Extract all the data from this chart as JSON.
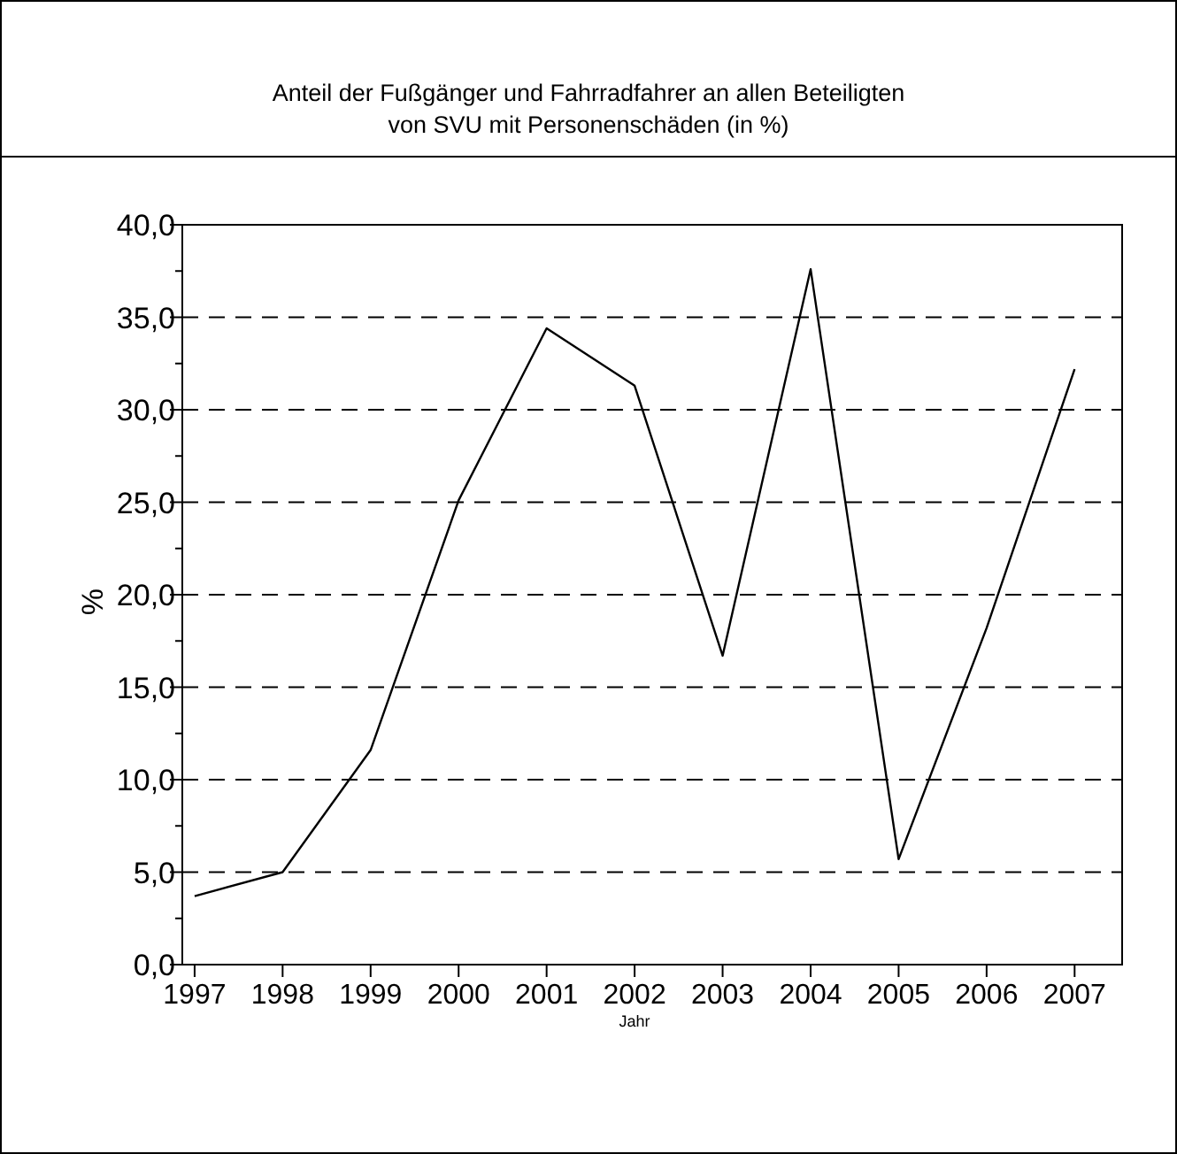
{
  "chart_data": {
    "type": "line",
    "title": "Anteil der Fußgänger und Fahrradfahrer an allen Beteiligten\nvon SVU mit Personenschäden (in %)",
    "xlabel": "Jahr",
    "ylabel": "%",
    "categories": [
      "1997",
      "1998",
      "1999",
      "2000",
      "2001",
      "2002",
      "2003",
      "2004",
      "2005",
      "2006",
      "2007"
    ],
    "series": [
      {
        "color": "#000000",
        "values": [
          3.7,
          5.0,
          11.6,
          25.1,
          34.4,
          31.3,
          16.7,
          37.6,
          5.7,
          18.2,
          32.2
        ]
      }
    ],
    "ylim": [
      0,
      40
    ],
    "yticks": [
      {
        "value": 0,
        "label": "0,0"
      },
      {
        "value": 2.5,
        "label": null
      },
      {
        "value": 5,
        "label": "5,0"
      },
      {
        "value": 7.5,
        "label": null
      },
      {
        "value": 10,
        "label": "10,0"
      },
      {
        "value": 12.5,
        "label": null
      },
      {
        "value": 15,
        "label": "15,0"
      },
      {
        "value": 17.5,
        "label": null
      },
      {
        "value": 20,
        "label": "20,0"
      },
      {
        "value": 22.5,
        "label": null
      },
      {
        "value": 25,
        "label": "25,0"
      },
      {
        "value": 27.5,
        "label": null
      },
      {
        "value": 30,
        "label": "30,0"
      },
      {
        "value": 32.5,
        "label": null
      },
      {
        "value": 35,
        "label": "35,0"
      },
      {
        "value": 37.5,
        "label": null
      },
      {
        "value": 40,
        "label": "40,0"
      }
    ],
    "grid": "y",
    "line_style": "solid",
    "marker": "none"
  }
}
